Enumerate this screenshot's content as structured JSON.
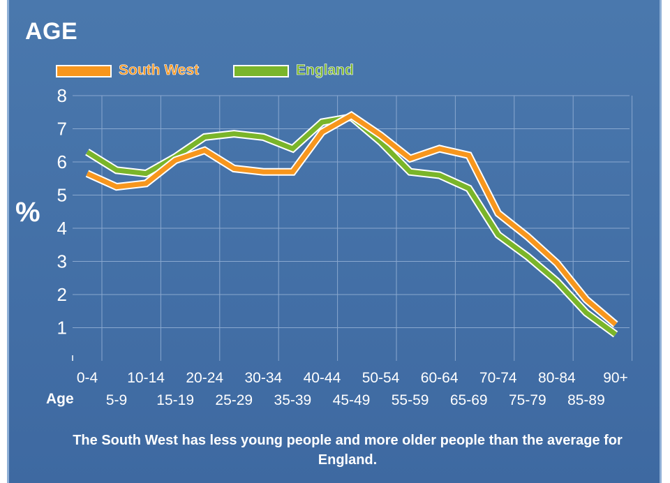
{
  "colors": {
    "background": "#4170a8",
    "grid": "#8aa8cf",
    "text": "#ffffff"
  },
  "title": "AGE",
  "note": "The South West has less young people and more older people than the average for England.",
  "chart_data": {
    "type": "line",
    "ylabel": "%",
    "xlabel": "Age",
    "ylim": [
      0,
      8
    ],
    "yticks": [
      1,
      2,
      3,
      4,
      5,
      6,
      7,
      8
    ],
    "grid": true,
    "legend_position": "top-left",
    "categories": [
      "0-4",
      "5-9",
      "10-14",
      "15-19",
      "20-24",
      "25-29",
      "30-34",
      "35-39",
      "40-44",
      "45-49",
      "50-54",
      "55-59",
      "60-64",
      "65-69",
      "70-74",
      "75-79",
      "80-84",
      "85-89",
      "90+"
    ],
    "series": [
      {
        "name": "England",
        "color": "#7ab52a",
        "values": [
          6.3,
          5.75,
          5.65,
          6.15,
          6.75,
          6.85,
          6.75,
          6.4,
          7.2,
          7.35,
          6.6,
          5.7,
          5.6,
          5.2,
          3.8,
          3.15,
          2.4,
          1.45,
          0.8
        ]
      },
      {
        "name": "South West",
        "color": "#f7961d",
        "values": [
          5.65,
          5.25,
          5.35,
          6.05,
          6.35,
          5.8,
          5.7,
          5.7,
          6.9,
          7.4,
          6.8,
          6.1,
          6.4,
          6.2,
          4.45,
          3.75,
          2.95,
          1.85,
          1.1
        ]
      }
    ]
  }
}
